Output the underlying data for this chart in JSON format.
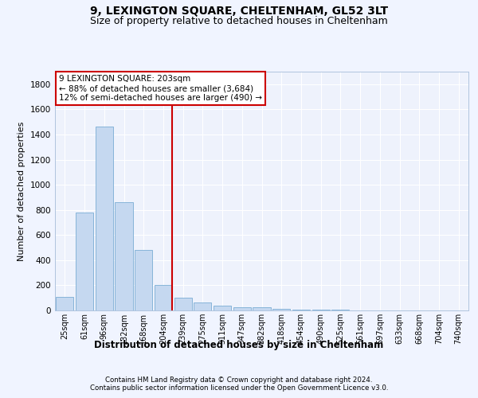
{
  "title1": "9, LEXINGTON SQUARE, CHELTENHAM, GL52 3LT",
  "title2": "Size of property relative to detached houses in Cheltenham",
  "xlabel": "Distribution of detached houses by size in Cheltenham",
  "ylabel": "Number of detached properties",
  "footer1": "Contains HM Land Registry data © Crown copyright and database right 2024.",
  "footer2": "Contains public sector information licensed under the Open Government Licence v3.0.",
  "categories": [
    "25sqm",
    "61sqm",
    "96sqm",
    "132sqm",
    "168sqm",
    "204sqm",
    "239sqm",
    "275sqm",
    "311sqm",
    "347sqm",
    "382sqm",
    "418sqm",
    "454sqm",
    "490sqm",
    "525sqm",
    "561sqm",
    "597sqm",
    "633sqm",
    "668sqm",
    "704sqm",
    "740sqm"
  ],
  "values": [
    110,
    780,
    1460,
    860,
    480,
    200,
    100,
    65,
    40,
    28,
    28,
    10,
    8,
    5,
    5,
    3,
    3,
    3,
    3,
    3,
    3
  ],
  "bar_color": "#c5d8f0",
  "bar_edge_color": "#7aadd4",
  "vline_x_index": 5,
  "vline_color": "#cc0000",
  "annotation_text": "9 LEXINGTON SQUARE: 203sqm\n← 88% of detached houses are smaller (3,684)\n12% of semi-detached houses are larger (490) →",
  "annotation_box_color": "#ffffff",
  "annotation_box_edge_color": "#cc0000",
  "ylim": [
    0,
    1900
  ],
  "yticks": [
    0,
    200,
    400,
    600,
    800,
    1000,
    1200,
    1400,
    1600,
    1800
  ],
  "bg_color": "#f0f4ff",
  "plot_bg_color": "#eef2fc",
  "grid_color": "#ffffff",
  "title1_fontsize": 10,
  "title2_fontsize": 9,
  "xlabel_fontsize": 8.5,
  "ylabel_fontsize": 8
}
